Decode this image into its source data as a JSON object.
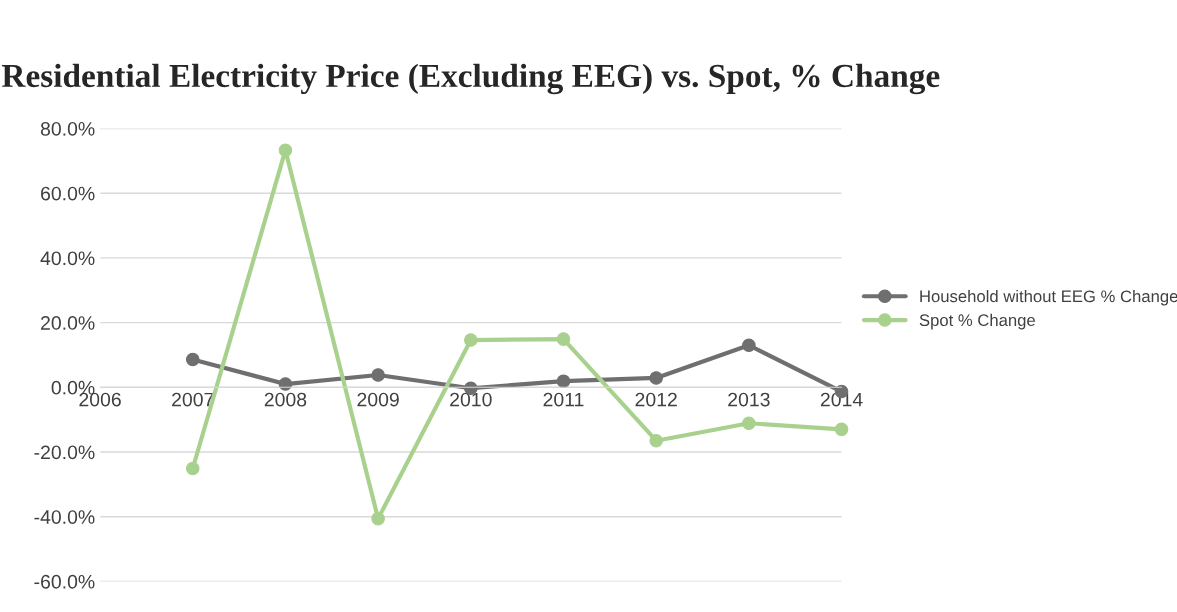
{
  "chart_data": {
    "type": "line",
    "title": "Residential Electricity Price (Excluding EEG) vs. Spot, % Change",
    "x": [
      2007,
      2008,
      2009,
      2010,
      2011,
      2012,
      2013,
      2014
    ],
    "series": [
      {
        "name": "Household without EEG % Change",
        "color": "#6f6f6f",
        "values": [
          8.6,
          1.0,
          3.8,
          -0.3,
          1.9,
          2.9,
          13.0,
          -1.3
        ]
      },
      {
        "name": "Spot % Change",
        "color": "#a9d18e",
        "values": [
          -25.1,
          73.3,
          -40.6,
          14.6,
          14.9,
          -16.5,
          -11.1,
          -13.0
        ]
      }
    ],
    "xlim": [
      2006,
      2014
    ],
    "xticks": [
      2006,
      2007,
      2008,
      2009,
      2010,
      2011,
      2012,
      2013,
      2014
    ],
    "ylim": [
      -60,
      80
    ],
    "yticks": [
      {
        "value": -60,
        "label": "-60.0%"
      },
      {
        "value": -40,
        "label": "-40.0%"
      },
      {
        "value": -20,
        "label": "-20.0%"
      },
      {
        "value": 0,
        "label": "0.0%"
      },
      {
        "value": 20,
        "label": "20.0%"
      },
      {
        "value": 40,
        "label": "40.0%"
      },
      {
        "value": 60,
        "label": "60.0%"
      },
      {
        "value": 80,
        "label": "80.0%"
      }
    ],
    "grid": "y",
    "legend": "right",
    "marker": "circle",
    "line_style": "solid"
  }
}
